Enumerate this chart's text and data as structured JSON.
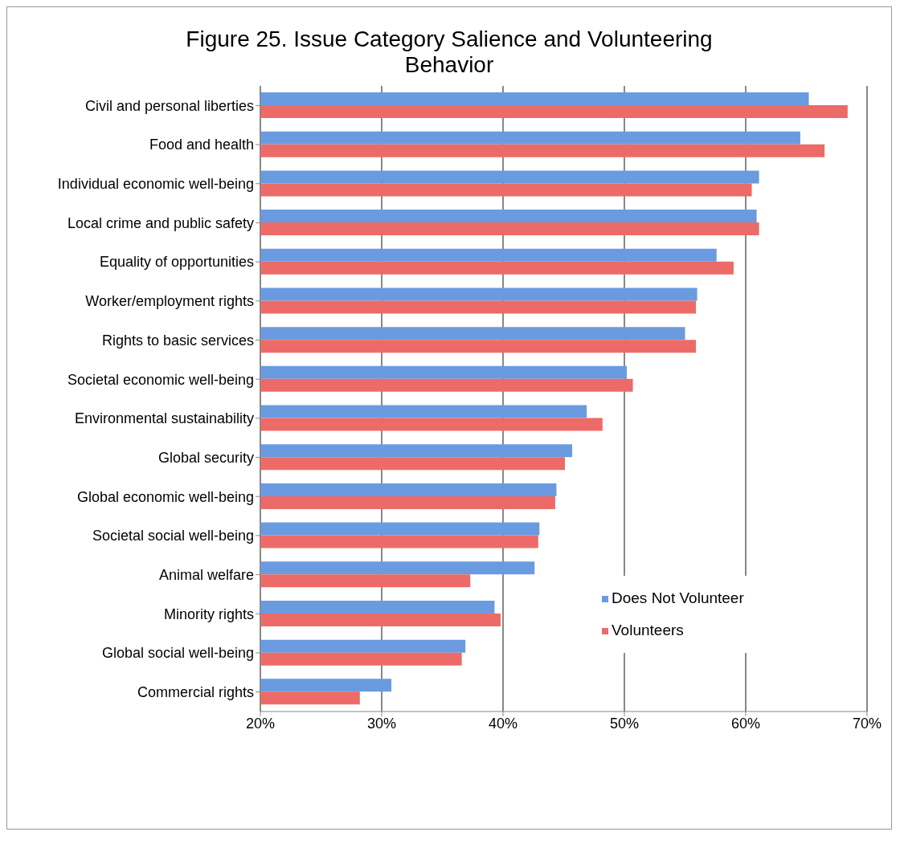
{
  "chart_data": {
    "type": "bar",
    "orientation": "horizontal",
    "title": "Figure 25. Issue Category Salience and Volunteering Behavior",
    "categories": [
      "Civil and personal liberties",
      "Food and health",
      "Individual economic well-being",
      "Local crime and public safety",
      "Equality of opportunities",
      "Worker/employment rights",
      "Rights to basic services",
      "Societal economic well-being",
      "Environmental sustainability",
      "Global security",
      "Global economic well-being",
      "Societal social well-being",
      "Animal welfare",
      "Minority rights",
      "Global social well-being",
      "Commercial rights"
    ],
    "series": [
      {
        "name": "Does Not Volunteer",
        "color": "#6a9be0",
        "values": [
          65.2,
          64.5,
          61.1,
          60.9,
          57.6,
          56.0,
          55.0,
          50.2,
          46.9,
          45.7,
          44.4,
          43.0,
          42.6,
          39.3,
          36.9,
          30.8
        ]
      },
      {
        "name": "Volunteers",
        "color": "#ec6b68",
        "values": [
          68.4,
          66.5,
          60.5,
          61.1,
          59.0,
          55.9,
          55.9,
          50.7,
          48.2,
          45.1,
          44.3,
          42.9,
          37.3,
          39.8,
          36.6,
          28.2
        ]
      }
    ],
    "xlim": [
      20,
      70
    ],
    "xticks": [
      {
        "value": 20,
        "label": "20%"
      },
      {
        "value": 30,
        "label": "30%"
      },
      {
        "value": 40,
        "label": "40%"
      },
      {
        "value": 50,
        "label": "50%"
      },
      {
        "value": 60,
        "label": "60%"
      },
      {
        "value": 70,
        "label": "70%"
      }
    ],
    "grid": "x",
    "legend": "right"
  }
}
